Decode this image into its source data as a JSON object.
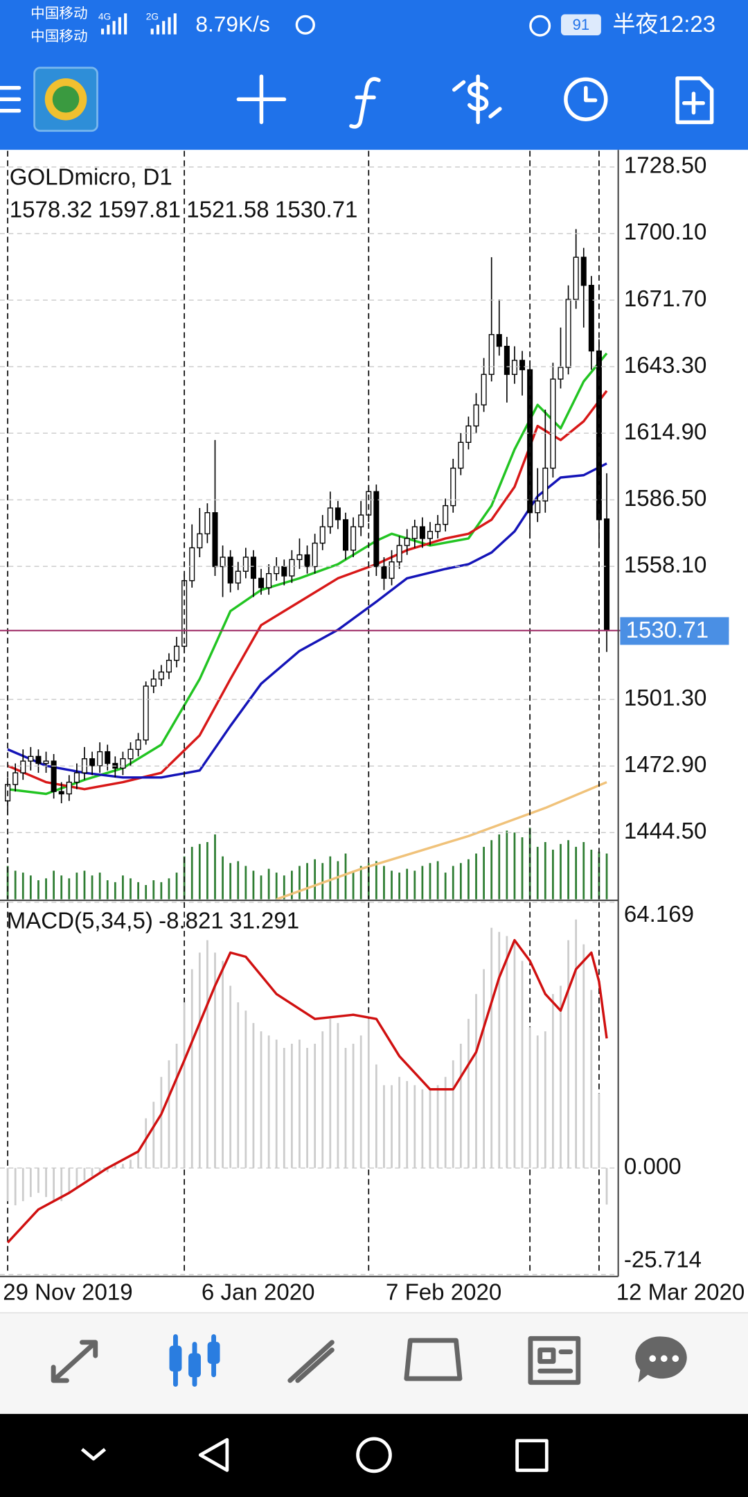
{
  "status_bar": {
    "carrier_1": "中国移动",
    "carrier_2": "中国移动",
    "network_1": "4G",
    "network_2": "2G",
    "speed": "8.79K/s",
    "battery": "91",
    "time": "半夜12:23"
  },
  "chart_data": [
    {
      "type": "candlestick",
      "title": "GOLDmicro, D1",
      "open": [
        1458,
        1465,
        1470,
        1475,
        1477,
        1474,
        1475,
        1462,
        1461,
        1466,
        1470,
        1476,
        1473,
        1479,
        1474,
        1472,
        1476,
        1480,
        1484,
        1507,
        1510,
        1513,
        1518,
        1524,
        1552,
        1566,
        1572,
        1581,
        1558,
        1562,
        1551,
        1556,
        1562,
        1553,
        1549,
        1555,
        1558,
        1554,
        1561,
        1563,
        1558,
        1568,
        1575,
        1583,
        1578,
        1565,
        1575,
        1580,
        1590,
        1558,
        1553,
        1560,
        1567,
        1570,
        1575,
        1570,
        1573,
        1576,
        1584,
        1600,
        1611,
        1618,
        1627,
        1640,
        1657,
        1652,
        1640,
        1646,
        1642,
        1581,
        1586,
        1600,
        1638,
        1643,
        1672,
        1690,
        1678,
        1650,
        1578.32
      ],
      "high": [
        1468,
        1474,
        1480,
        1481,
        1480,
        1479,
        1478,
        1466,
        1469,
        1474,
        1481,
        1479,
        1483,
        1482,
        1477,
        1479,
        1483,
        1487,
        1509,
        1514,
        1516,
        1521,
        1528,
        1555,
        1576,
        1583,
        1585,
        1612,
        1567,
        1565,
        1560,
        1566,
        1565,
        1557,
        1559,
        1562,
        1561,
        1565,
        1570,
        1567,
        1572,
        1580,
        1590,
        1586,
        1581,
        1579,
        1586,
        1592,
        1593,
        1562,
        1565,
        1571,
        1574,
        1578,
        1579,
        1577,
        1580,
        1587,
        1604,
        1615,
        1622,
        1632,
        1647,
        1690,
        1672,
        1656,
        1652,
        1650,
        1646,
        1600,
        1625,
        1645,
        1660,
        1678,
        1702,
        1694,
        1682,
        1655,
        1597.81
      ],
      "low": [
        1452,
        1462,
        1467,
        1471,
        1470,
        1470,
        1459,
        1457,
        1458,
        1463,
        1467,
        1469,
        1470,
        1471,
        1468,
        1469,
        1473,
        1477,
        1482,
        1504,
        1507,
        1510,
        1515,
        1521,
        1549,
        1562,
        1568,
        1554,
        1545,
        1547,
        1548,
        1553,
        1545,
        1546,
        1546,
        1552,
        1550,
        1551,
        1557,
        1555,
        1555,
        1565,
        1572,
        1574,
        1561,
        1562,
        1571,
        1577,
        1554,
        1548,
        1550,
        1557,
        1563,
        1566,
        1566,
        1567,
        1570,
        1573,
        1581,
        1597,
        1608,
        1615,
        1624,
        1637,
        1648,
        1628,
        1636,
        1631,
        1570,
        1577,
        1581,
        1596,
        1634,
        1640,
        1668,
        1660,
        1642,
        1566,
        1521.58
      ],
      "close": [
        1465,
        1470,
        1475,
        1477,
        1474,
        1475,
        1462,
        1461,
        1466,
        1470,
        1476,
        1473,
        1479,
        1474,
        1472,
        1476,
        1480,
        1484,
        1507,
        1510,
        1513,
        1518,
        1524,
        1552,
        1566,
        1572,
        1581,
        1558,
        1562,
        1551,
        1556,
        1562,
        1553,
        1549,
        1555,
        1558,
        1554,
        1561,
        1563,
        1558,
        1568,
        1575,
        1583,
        1578,
        1565,
        1575,
        1580,
        1590,
        1558,
        1553,
        1560,
        1567,
        1570,
        1575,
        1570,
        1573,
        1576,
        1584,
        1600,
        1611,
        1618,
        1627,
        1640,
        1657,
        1652,
        1640,
        1646,
        1642,
        1581,
        1586,
        1600,
        1638,
        1643,
        1672,
        1690,
        1678,
        1650,
        1578,
        1530.71
      ],
      "volume": [
        35,
        30,
        28,
        25,
        20,
        22,
        30,
        25,
        22,
        28,
        30,
        25,
        28,
        20,
        18,
        25,
        22,
        18,
        15,
        20,
        18,
        22,
        28,
        45,
        55,
        58,
        60,
        68,
        45,
        38,
        40,
        35,
        30,
        25,
        32,
        28,
        25,
        30,
        35,
        38,
        42,
        38,
        45,
        40,
        48,
        30,
        35,
        38,
        40,
        35,
        30,
        28,
        32,
        30,
        35,
        38,
        40,
        28,
        35,
        38,
        42,
        48,
        55,
        62,
        68,
        72,
        70,
        65,
        75,
        55,
        60,
        52,
        58,
        62,
        55,
        60,
        52,
        50,
        48
      ],
      "vlim": [
        0,
        100
      ],
      "volume_color": "#2e7d32",
      "up_color": "#ffffff",
      "down_color": "#000000",
      "lines": [
        {
          "color": "#22c422",
          "x": [
            0,
            5,
            10,
            15,
            20,
            25,
            29,
            33,
            38,
            43,
            48,
            50,
            55,
            60,
            63,
            66,
            69,
            72,
            75,
            78
          ],
          "values": [
            1463,
            1461,
            1467,
            1472,
            1482,
            1510,
            1539,
            1548,
            1553,
            1559,
            1569,
            1572,
            1567,
            1570,
            1584,
            1608,
            1627,
            1617,
            1637,
            1649
          ]
        },
        {
          "color": "#d81818",
          "x": [
            0,
            5,
            10,
            15,
            20,
            25,
            29,
            33,
            38,
            43,
            48,
            52,
            57,
            60,
            63,
            66,
            69,
            72,
            75,
            78
          ],
          "values": [
            1473,
            1466,
            1463,
            1466,
            1470,
            1486,
            1510,
            1533,
            1543,
            1553,
            1559,
            1565,
            1570,
            1572,
            1578,
            1592,
            1618,
            1612,
            1620,
            1633
          ]
        },
        {
          "color": "#1414b8",
          "x": [
            0,
            5,
            10,
            15,
            20,
            25,
            29,
            33,
            38,
            43,
            48,
            52,
            57,
            60,
            63,
            66,
            69,
            72,
            75,
            78
          ],
          "values": [
            1480,
            1473,
            1470,
            1468,
            1468,
            1471,
            1490,
            1508,
            1522,
            1531,
            1543,
            1553,
            1557,
            1559,
            1564,
            1573,
            1588,
            1596,
            1597,
            1602
          ]
        },
        {
          "color": "#f0c27a",
          "x": [
            35,
            46,
            60,
            70,
            78
          ],
          "values": [
            1416,
            1429,
            1443,
            1455,
            1466
          ]
        }
      ],
      "last_price_line_color": "#a0306a",
      "last_price_label_color": "#4a8fe4",
      "xlim": [
        -1,
        79.5
      ],
      "xticks": [
        {
          "value": 0,
          "label": "29 Nov 2019"
        },
        {
          "value": 23,
          "label": "6 Jan 2020"
        },
        {
          "value": 47,
          "label": "7 Feb 2020"
        },
        {
          "value": 68,
          "label": null
        },
        {
          "value": 77,
          "label": "12 Mar 2020"
        }
      ],
      "ylim": [
        1416,
        1735.4
      ],
      "yticks": [
        {
          "value": 1728.5,
          "label": "1728.50"
        },
        {
          "value": 1700.1,
          "label": "1700.10"
        },
        {
          "value": 1671.7,
          "label": "1671.70"
        },
        {
          "value": 1643.3,
          "label": "1643.30"
        },
        {
          "value": 1614.9,
          "label": "1614.90"
        },
        {
          "value": 1586.5,
          "label": "1586.50"
        },
        {
          "value": 1558.1,
          "label": "1558.10"
        },
        {
          "value": 1501.3,
          "label": "1501.30"
        },
        {
          "value": 1472.9,
          "label": "1472.90"
        },
        {
          "value": 1444.5,
          "label": "1444.50"
        }
      ],
      "grid": true
    },
    {
      "type": "macd",
      "title": "MACD(5,34,5)",
      "histogram": [
        -8,
        -9,
        -8,
        -7,
        -6,
        -7,
        -8,
        -8,
        -6,
        -5,
        -3,
        -2,
        -1,
        -1,
        1,
        1,
        2,
        4,
        12,
        16,
        22,
        26,
        30,
        40,
        48,
        52,
        55,
        52,
        50,
        44,
        40,
        38,
        35,
        33,
        32,
        31,
        29,
        30,
        31,
        29,
        30,
        33,
        36,
        35,
        29,
        30,
        32,
        36,
        25,
        20,
        20,
        22,
        21,
        20,
        19,
        19,
        20,
        22,
        26,
        30,
        36,
        42,
        48,
        58,
        57,
        56,
        55,
        50,
        34,
        32,
        33,
        42,
        44,
        55,
        60,
        54,
        43,
        18,
        -8.821
      ],
      "histogram_color": "#cccccc",
      "signal": {
        "color": "#d01010",
        "x": [
          0,
          4,
          8,
          13,
          17,
          20,
          23,
          27,
          29,
          31,
          35,
          40,
          45,
          48,
          51,
          55,
          58,
          61,
          64,
          66,
          68,
          70,
          72,
          74,
          76,
          77,
          78
        ],
        "values": [
          -18,
          -10,
          -6,
          0,
          4,
          13,
          26,
          44,
          52,
          51,
          42,
          36,
          37,
          36,
          27,
          19,
          19,
          28,
          46,
          55,
          50,
          42,
          38,
          48,
          52,
          45,
          31.291
        ]
      },
      "ylim": [
        -25.714,
        64.169
      ],
      "yticks": [
        64.169,
        {
          "value": 0,
          "label": "0.000"
        },
        -25.714
      ],
      "grid": true
    }
  ]
}
